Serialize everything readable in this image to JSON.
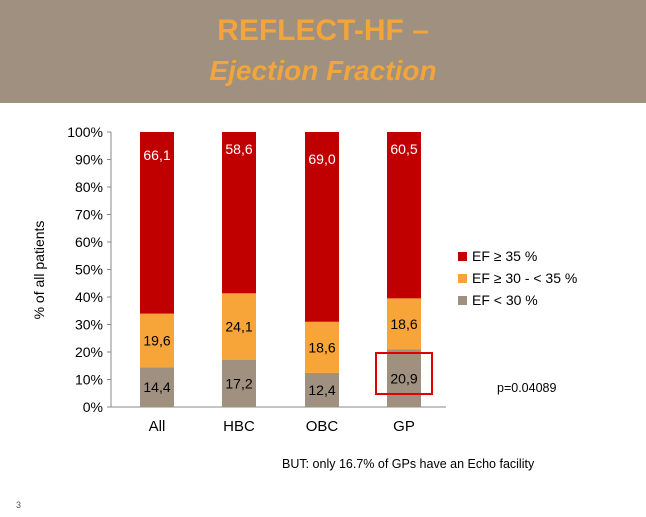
{
  "header": {
    "title_line1": "REFLECT-HF –",
    "title_line2": "Ejection Fraction"
  },
  "colors": {
    "header_bg": "#a0907f",
    "title": "#f1a53a",
    "ef_ge35": "#c00000",
    "ef_30_35": "#f7a538",
    "ef_lt30": "#a0907f",
    "highlight_box": "#e00000"
  },
  "chart_data": {
    "type": "bar",
    "stacked": true,
    "categories": [
      "All",
      "HBC",
      "OBC",
      "GP"
    ],
    "ylabel": "% of all patients",
    "ylim": [
      0,
      100
    ],
    "y_ticks": [
      "0%",
      "10%",
      "20%",
      "30%",
      "40%",
      "50%",
      "60%",
      "70%",
      "80%",
      "90%",
      "100%"
    ],
    "series": [
      {
        "name": "EF < 30 %",
        "values": [
          14.4,
          17.2,
          12.4,
          20.9
        ],
        "labels": [
          "14,4",
          "17,2",
          "12,4",
          "20,9"
        ],
        "color": "#a0907f"
      },
      {
        "name": "EF ≥ 30 - < 35 %",
        "values": [
          19.6,
          24.1,
          18.6,
          18.6
        ],
        "labels": [
          "19,6",
          "24,1",
          "18,6",
          "18,6"
        ],
        "color": "#f7a538"
      },
      {
        "name": "EF ≥ 35 %",
        "values": [
          66.1,
          58.6,
          69.0,
          60.5
        ],
        "labels": [
          "66,1",
          "58,6",
          "69,0",
          "60,5"
        ],
        "color": "#c00000"
      }
    ],
    "legend_position": "right",
    "highlight": {
      "category": "GP",
      "series": "EF < 30 %"
    }
  },
  "annotations": {
    "p_value": "p=0.04089",
    "footnote": "BUT: only 16.7% of GPs have an Echo facility"
  },
  "slide_number": "3"
}
